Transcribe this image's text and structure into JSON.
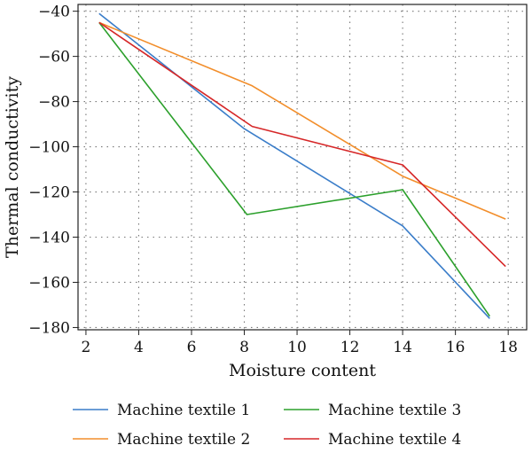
{
  "chart_data": {
    "type": "line",
    "xlabel": "Moisture content",
    "ylabel": "Thermal conductivity",
    "xlim": [
      1.7,
      18.7
    ],
    "ylim": [
      -181,
      -37
    ],
    "x_ticks": [
      2,
      4,
      6,
      8,
      10,
      12,
      14,
      16,
      18
    ],
    "y_ticks": [
      -40,
      -60,
      -80,
      -100,
      -120,
      -140,
      -160,
      -180
    ],
    "grid": true,
    "grid_style": "dotted",
    "legend_position": "bottom",
    "series": [
      {
        "name": "Machine textile 1",
        "color": "#3a7dc9",
        "x": [
          2.5,
          8.0,
          14.0,
          17.3
        ],
        "y": [
          -41,
          -92,
          -135,
          -176
        ]
      },
      {
        "name": "Machine textile 2",
        "color": "#f28e2b",
        "x": [
          2.5,
          8.3,
          14.0,
          17.9
        ],
        "y": [
          -45,
          -73,
          -113,
          -132
        ]
      },
      {
        "name": "Machine textile 3",
        "color": "#2ca02c",
        "x": [
          2.5,
          8.1,
          14.0,
          17.3
        ],
        "y": [
          -45,
          -130,
          -119,
          -175
        ]
      },
      {
        "name": "Machine textile 4",
        "color": "#d62728",
        "x": [
          2.5,
          8.3,
          14.0,
          17.9
        ],
        "y": [
          -45,
          -91,
          -108,
          -153
        ]
      }
    ]
  }
}
